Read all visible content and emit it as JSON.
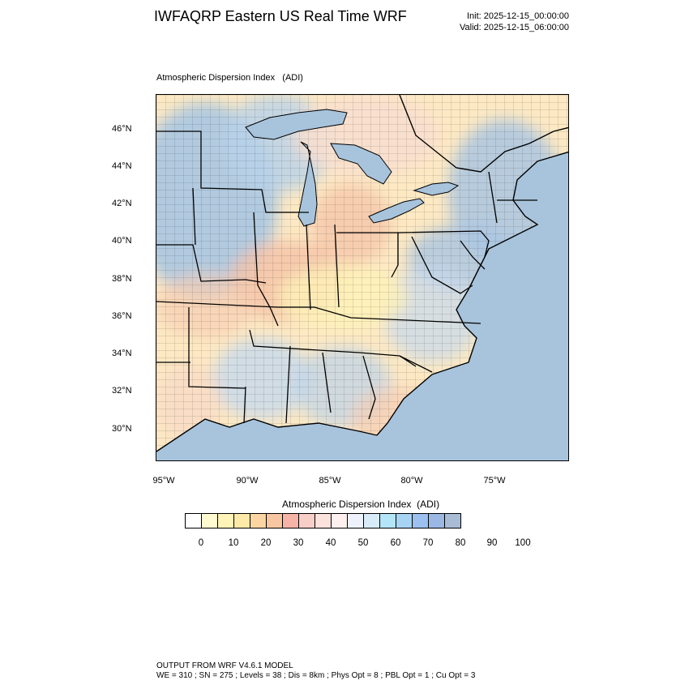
{
  "header": {
    "title": "IWFAQRP Eastern US Real Time WRF",
    "init": "Init: 2025-12-15_00:00:00",
    "valid": "Valid: 2025-12-15_06:00:00"
  },
  "map": {
    "subtitle": "Atmospheric Dispersion Index   (ADI)",
    "lat_labels": [
      "46°N",
      "44°N",
      "42°N",
      "40°N",
      "38°N",
      "36°N",
      "34°N",
      "32°N",
      "30°N"
    ],
    "lon_labels": [
      "95°W",
      "90°W",
      "85°W",
      "80°W",
      "75°W"
    ],
    "colors": {
      "ocean": "#a8c4dc",
      "land_high": "#aac6e2",
      "land_mid": "#fde9c3",
      "land_low": "#f5c2a6",
      "canada": "#f8dfcf",
      "boundary": "#000000"
    }
  },
  "colorbar": {
    "title": "Atmospheric Dispersion Index  (ADI)",
    "labels": [
      "0",
      "10",
      "20",
      "30",
      "40",
      "50",
      "60",
      "70",
      "80",
      "90",
      "100"
    ],
    "colors": [
      "#ffffff",
      "#fffad0",
      "#fff3b8",
      "#fde9a8",
      "#fbd6a2",
      "#f8c6a0",
      "#f5b4a6",
      "#f7cfc8",
      "#fbe2dc",
      "#fdf0ee",
      "#eef2fc",
      "#d7ebf8",
      "#b4e4f8",
      "#a8d4f4",
      "#9cc0ef",
      "#9bb7e3",
      "#a8bcd6"
    ]
  },
  "footer": {
    "line1": "OUTPUT FROM WRF V4.6.1 MODEL",
    "line2": "WE = 310 ; SN = 275 ; Levels = 38 ; Dis = 8km ; Phys Opt = 8 ; PBL Opt = 1 ; Cu Opt = 3"
  }
}
